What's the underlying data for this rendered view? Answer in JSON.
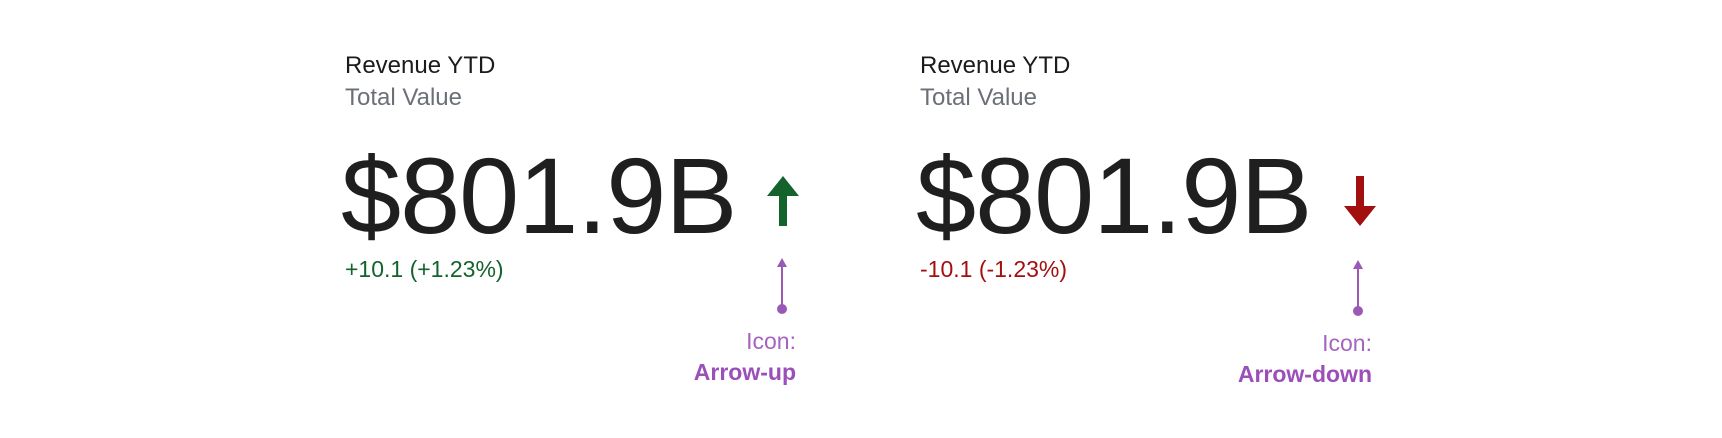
{
  "colors": {
    "positive": "#14632d",
    "negative": "#a30f0f",
    "annotation": "#9b59b6",
    "value": "#1f1f1f"
  },
  "cards": [
    {
      "title": "Revenue YTD",
      "subtitle": "Total Value",
      "value": "$801.9B",
      "delta": "+10.1 (+1.23%)",
      "trend": "up",
      "icon": "arrow-up-icon",
      "annotation": {
        "label": "Icon:",
        "name": "Arrow-up"
      }
    },
    {
      "title": "Revenue YTD",
      "subtitle": "Total Value",
      "value": "$801.9B",
      "delta": "-10.1 (-1.23%)",
      "trend": "down",
      "icon": "arrow-down-icon",
      "annotation": {
        "label": "Icon:",
        "name": "Arrow-down"
      }
    }
  ]
}
